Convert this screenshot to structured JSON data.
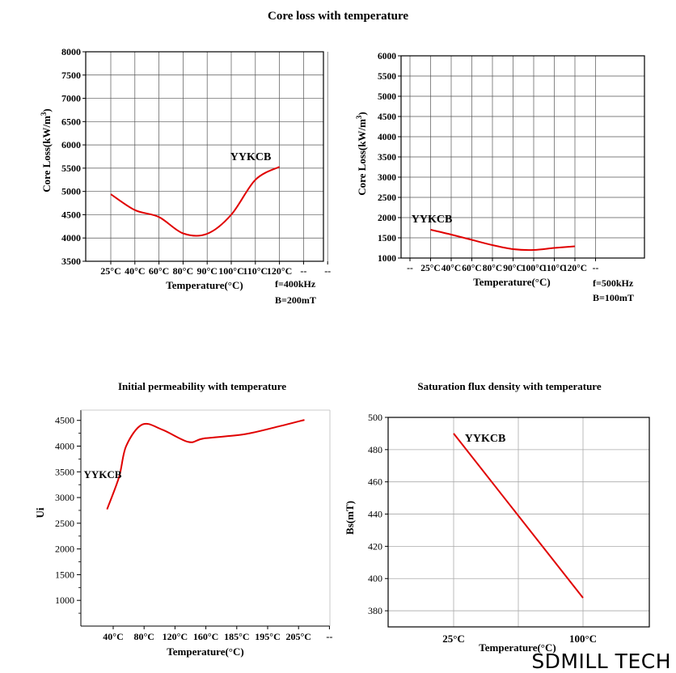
{
  "header": {
    "title": "Core loss with temperature"
  },
  "watermark": "SDMILL TECH",
  "chart_data": [
    {
      "type": "line",
      "ylabel": "Core Loss(kW/m³)",
      "xlabel": "Temperature(°C)",
      "categories": [
        "25°C",
        "40°C",
        "60°C",
        "80°C",
        "90°C",
        "100°C",
        "110°C",
        "120°C",
        "--",
        "--"
      ],
      "ylim": [
        3500,
        8000
      ],
      "yticks": [
        3500,
        4000,
        4500,
        5000,
        5500,
        6000,
        6500,
        7000,
        7500,
        8000
      ],
      "grid": true,
      "series": [
        {
          "name": "YYKCB",
          "values": [
            4940,
            4600,
            4450,
            4100,
            4090,
            4500,
            5250,
            5530,
            null,
            null
          ]
        }
      ],
      "annotations": [
        "YYKCB"
      ],
      "conditions": [
        "f=400kHz",
        "B=200mT"
      ],
      "color": "#e00000"
    },
    {
      "type": "line",
      "ylabel": "Core Loss(kW/m³)",
      "xlabel": "Temperature(°C)",
      "categories": [
        "--",
        "25°C",
        "40°C",
        "60°C",
        "80°C",
        "90°C",
        "100°C",
        "110°C",
        "120°C",
        "--"
      ],
      "ylim": [
        1000,
        6000
      ],
      "yticks": [
        1000,
        1500,
        2000,
        2500,
        3000,
        3500,
        4000,
        4500,
        5000,
        5500,
        6000
      ],
      "grid": true,
      "series": [
        {
          "name": "YYKCB",
          "values": [
            null,
            1700,
            1580,
            1450,
            1320,
            1220,
            1200,
            1250,
            1290,
            null
          ]
        }
      ],
      "annotations": [
        "YYKCB"
      ],
      "conditions": [
        "f=500kHz",
        "B=100mT"
      ],
      "color": "#e00000"
    },
    {
      "type": "line",
      "title": "Initial permeability with temperature",
      "ylabel": "Ui",
      "xlabel": "Temperature(°C)",
      "categories": [
        "40°C",
        "80°C",
        "120°C",
        "160°C",
        "185°C",
        "195°C",
        "205°C",
        "--"
      ],
      "ylim": [
        500,
        4700
      ],
      "yticks": [
        1000,
        1500,
        2000,
        2500,
        3000,
        3500,
        4000,
        4500
      ],
      "grid": false,
      "series": [
        {
          "name": "YYKCB",
          "x": [
            0.16,
            0.55,
            0.78,
            1.3,
            1.95,
            2.8,
            3.3,
            4.6,
            5.7,
            6.55
          ],
          "values": [
            2770,
            3400,
            4000,
            4420,
            4320,
            4080,
            4150,
            4230,
            4380,
            4510
          ]
        }
      ],
      "annotations": [
        "YYKCB"
      ],
      "color": "#e00000"
    },
    {
      "type": "line",
      "title": "Saturation flux density with temperature",
      "ylabel": "Bs(mT)",
      "xlabel": "Temperature(°C)",
      "categories": [
        "25°C",
        "100°C"
      ],
      "ylim": [
        370,
        500
      ],
      "yticks": [
        380,
        400,
        420,
        440,
        460,
        480,
        500
      ],
      "grid": true,
      "series": [
        {
          "name": "YYKCB",
          "x": [
            25,
            100
          ],
          "values": [
            490,
            388
          ]
        }
      ],
      "annotations": [
        "YYKCB"
      ],
      "color": "#e00000"
    }
  ]
}
